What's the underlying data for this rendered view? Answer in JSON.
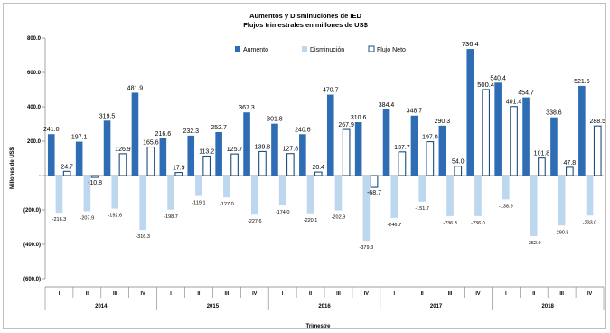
{
  "chart_data": {
    "type": "bar",
    "title": "Aumentos y Disminuciones de IED",
    "subtitle": "Flujos trimestrales en millones de US$",
    "ylabel": "Millones de US$",
    "xlabel": "Trimestre",
    "ylim": [
      -600,
      800
    ],
    "yticks": [
      "800.0",
      "600.0",
      "400.0",
      "200.0",
      "-",
      "(200.0)",
      "(400.0)",
      "(600.0)"
    ],
    "ytick_values": [
      800,
      600,
      400,
      200,
      0,
      -200,
      -400,
      -600
    ],
    "legend_position": "top-right",
    "quarters": [
      "I",
      "II",
      "III",
      "IV",
      "I",
      "II",
      "III",
      "IV",
      "I",
      "II",
      "III",
      "IV",
      "I",
      "II",
      "III",
      "IV",
      "I",
      "II",
      "III",
      "IV"
    ],
    "years": [
      "2014",
      "2015",
      "2016",
      "2017",
      "2018"
    ],
    "series": [
      {
        "name": "Aumento",
        "color": "#2e6db4",
        "values": [
          241.0,
          197.1,
          319.5,
          481.9,
          216.6,
          232.3,
          252.7,
          367.3,
          301.8,
          240.6,
          470.7,
          310.6,
          384.4,
          348.7,
          290.3,
          736.4,
          540.4,
          454.7,
          338.6,
          521.5
        ],
        "labels": [
          "241.0",
          "197.1",
          "319.5",
          "481.9",
          "216.6",
          "232.3",
          "252.7",
          "367.3",
          "301.8",
          "240.6",
          "470.7",
          "310.6",
          "384.4",
          "348.7",
          "290.3",
          "736.4",
          "540.4",
          "454.7",
          "338.6",
          "521.5"
        ]
      },
      {
        "name": "Disminución",
        "color": "#bdd7ee",
        "values": [
          -216.3,
          -207.9,
          -192.6,
          -316.3,
          -198.7,
          -119.1,
          -127.0,
          -227.6,
          -174.0,
          -220.1,
          -202.9,
          -379.3,
          -246.7,
          -151.7,
          -236.3,
          -236.0,
          -138.9,
          -352.9,
          -290.8,
          -233.0
        ],
        "labels": [
          "-216.3",
          "-207.9",
          "-192.6",
          "-316.3",
          "-198.7",
          "-119.1",
          "-127.0",
          "-227.6",
          "-174.0",
          "-220.1",
          "-202.9",
          "-379.3",
          "-246.7",
          "-151.7",
          "-236.3",
          "-236.0",
          "-138.9",
          "-352.9",
          "-290.8",
          "-233.0"
        ]
      },
      {
        "name": "Flujo Neto",
        "color": "#1f4e79",
        "values": [
          24.7,
          -10.8,
          126.9,
          165.6,
          17.9,
          113.2,
          125.7,
          139.8,
          127.8,
          20.4,
          267.9,
          -68.7,
          137.7,
          197.0,
          54.0,
          500.4,
          401.4,
          101.8,
          47.8,
          288.5
        ],
        "labels": [
          "24.7",
          "-10.8",
          "126.9",
          "165.6",
          "17.9",
          "113.2",
          "125.7",
          "139.8",
          "127.8",
          "20.4",
          "267.9",
          "-68.7",
          "137.7",
          "197.0",
          "54.0",
          "500.4",
          "401.4",
          "101.8",
          "47.8",
          "288.5"
        ]
      }
    ]
  }
}
